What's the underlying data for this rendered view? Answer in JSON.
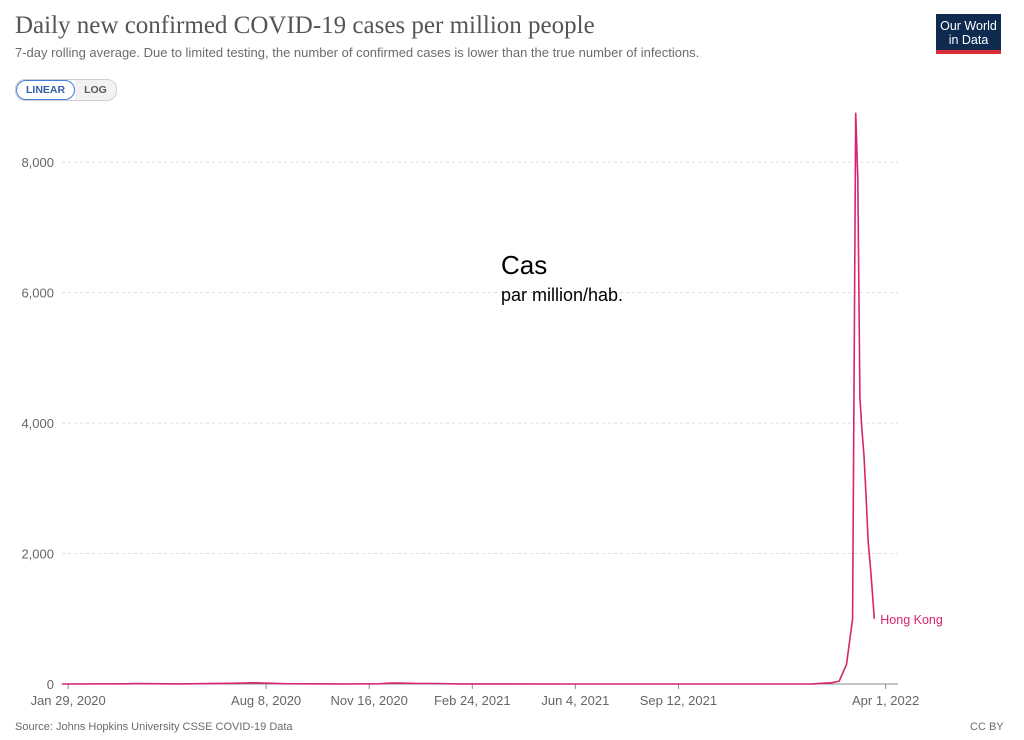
{
  "header": {
    "title": "Daily new confirmed COVID-19 cases per million people",
    "subtitle": "7-day rolling average. Due to limited testing, the number of confirmed cases is lower than the true number of infections."
  },
  "logo": {
    "line1": "Our World",
    "line2": "in Data"
  },
  "scale_toggle": {
    "linear_label": "LINEAR",
    "log_label": "LOG",
    "selected": "LINEAR"
  },
  "annotation": {
    "line1": "Cas",
    "line2": "par million/hab."
  },
  "footer": {
    "source": "Source: Johns Hopkins University CSSE COVID-19 Data",
    "license": "CC BY"
  },
  "colors": {
    "series": "#d6246e",
    "grid": "#dddddd",
    "axis": "#666666"
  },
  "chart_data": {
    "type": "line",
    "title": "Daily new confirmed COVID-19 cases per million people",
    "subtitle": "7-day rolling average. Due to limited testing, the number of confirmed cases is lower than the true number of infections.",
    "x_ticks": [
      "Jan 29, 2020",
      "Aug 8, 2020",
      "Nov 16, 2020",
      "Feb 24, 2021",
      "Jun 4, 2021",
      "Sep 12, 2021",
      "Apr 1, 2022"
    ],
    "y_ticks": [
      "0",
      "2,000",
      "4,000",
      "6,000",
      "8,000"
    ],
    "ylim": [
      0,
      8800
    ],
    "xlim": [
      "2020-01-23",
      "2022-04-13"
    ],
    "grid": "horizontal dashed",
    "series": [
      {
        "name": "Hong Kong",
        "color": "#d6246e",
        "points": [
          [
            "2020-01-23",
            0
          ],
          [
            "2020-03-25",
            3
          ],
          [
            "2020-04-05",
            6
          ],
          [
            "2020-05-15",
            1
          ],
          [
            "2020-07-05",
            10
          ],
          [
            "2020-07-28",
            18
          ],
          [
            "2020-08-05",
            14
          ],
          [
            "2020-08-25",
            4
          ],
          [
            "2020-10-15",
            1
          ],
          [
            "2020-11-25",
            3
          ],
          [
            "2020-12-05",
            12
          ],
          [
            "2020-12-15",
            14
          ],
          [
            "2021-01-05",
            8
          ],
          [
            "2021-01-20",
            7
          ],
          [
            "2021-02-10",
            2
          ],
          [
            "2021-06-01",
            0
          ],
          [
            "2021-12-01",
            0
          ],
          [
            "2022-01-20",
            2
          ],
          [
            "2022-02-08",
            20
          ],
          [
            "2022-02-15",
            45
          ],
          [
            "2022-02-22",
            300
          ],
          [
            "2022-02-28",
            1000
          ],
          [
            "2022-03-03",
            8750
          ],
          [
            "2022-03-05",
            7750
          ],
          [
            "2022-03-07",
            4400
          ],
          [
            "2022-03-09",
            3900
          ],
          [
            "2022-03-11",
            3500
          ],
          [
            "2022-03-13",
            2900
          ],
          [
            "2022-03-15",
            2200
          ],
          [
            "2022-03-18",
            1650
          ],
          [
            "2022-03-21",
            1000
          ]
        ]
      }
    ]
  }
}
